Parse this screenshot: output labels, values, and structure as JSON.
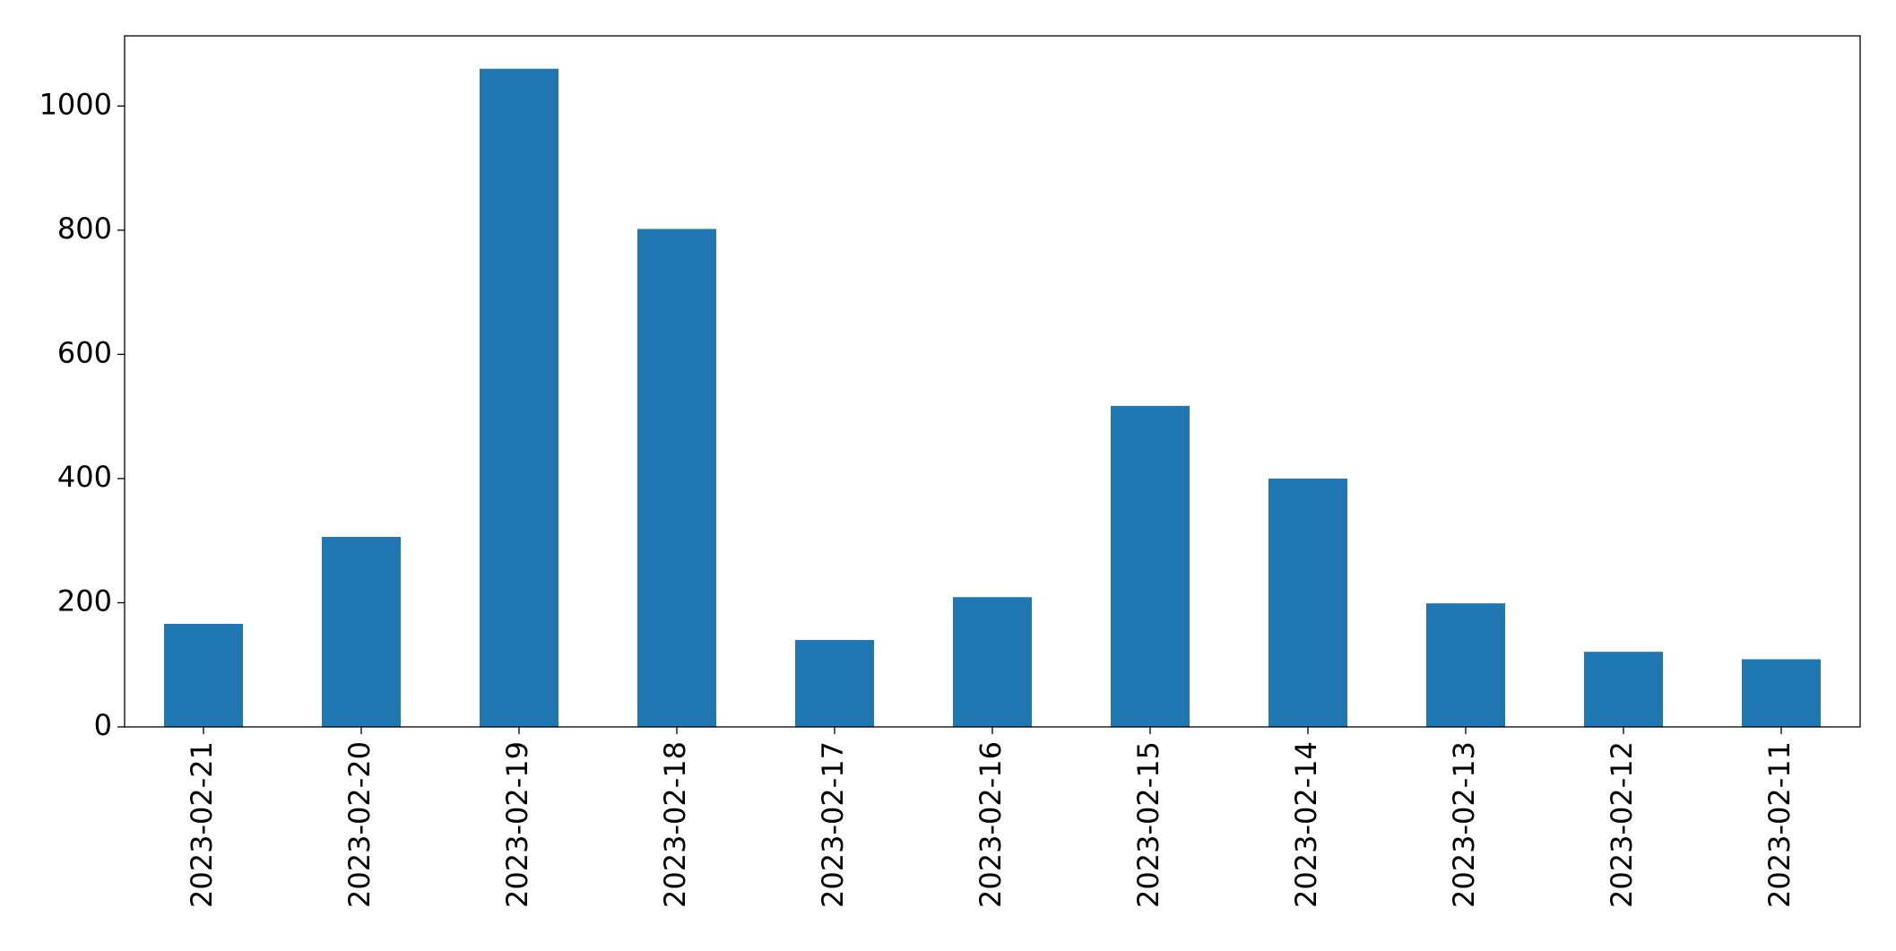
{
  "chart_data": {
    "type": "bar",
    "categories": [
      "2023-02-21",
      "2023-02-20",
      "2023-02-19",
      "2023-02-18",
      "2023-02-17",
      "2023-02-16",
      "2023-02-15",
      "2023-02-14",
      "2023-02-13",
      "2023-02-12",
      "2023-02-11"
    ],
    "values": [
      166,
      306,
      1060,
      802,
      140,
      209,
      517,
      400,
      199,
      121,
      109
    ],
    "color": "#1f77b4",
    "ylim": [
      0,
      1113
    ],
    "yticks": [
      0,
      200,
      400,
      600,
      800,
      1000
    ],
    "grid": false
  }
}
